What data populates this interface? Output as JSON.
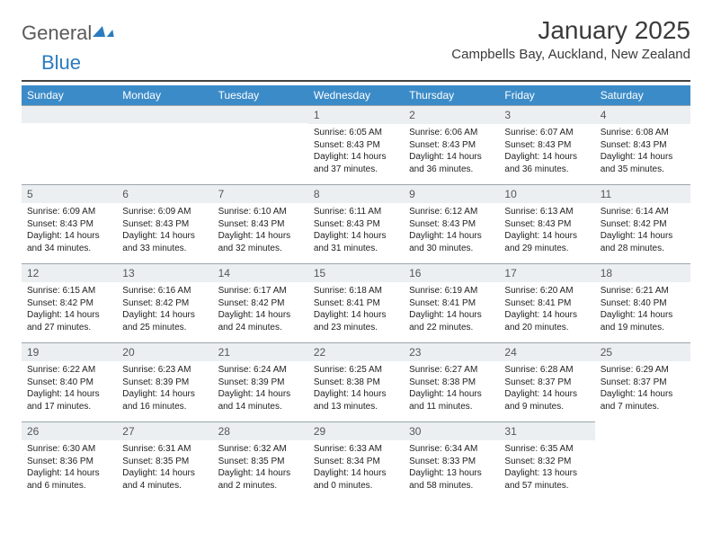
{
  "brand": {
    "part1": "General",
    "part2": "Blue"
  },
  "title": "January 2025",
  "location": "Campbells Bay, Auckland, New Zealand",
  "colors": {
    "header_bg": "#3b8bc8",
    "header_text": "#ffffff",
    "daynum_bg": "#eceff1",
    "daynum_border": "#9aa5ad",
    "body_text": "#222222",
    "logo_gray": "#5a5a5a",
    "logo_blue": "#2a7bbf",
    "rule": "#444444"
  },
  "dayNames": [
    "Sunday",
    "Monday",
    "Tuesday",
    "Wednesday",
    "Thursday",
    "Friday",
    "Saturday"
  ],
  "labels": {
    "sunrise": "Sunrise:",
    "sunset": "Sunset:",
    "daylight": "Daylight:"
  },
  "startOffset": 3,
  "days": [
    {
      "n": 1,
      "rise": "6:05 AM",
      "set": "8:43 PM",
      "day": "14 hours and 37 minutes."
    },
    {
      "n": 2,
      "rise": "6:06 AM",
      "set": "8:43 PM",
      "day": "14 hours and 36 minutes."
    },
    {
      "n": 3,
      "rise": "6:07 AM",
      "set": "8:43 PM",
      "day": "14 hours and 36 minutes."
    },
    {
      "n": 4,
      "rise": "6:08 AM",
      "set": "8:43 PM",
      "day": "14 hours and 35 minutes."
    },
    {
      "n": 5,
      "rise": "6:09 AM",
      "set": "8:43 PM",
      "day": "14 hours and 34 minutes."
    },
    {
      "n": 6,
      "rise": "6:09 AM",
      "set": "8:43 PM",
      "day": "14 hours and 33 minutes."
    },
    {
      "n": 7,
      "rise": "6:10 AM",
      "set": "8:43 PM",
      "day": "14 hours and 32 minutes."
    },
    {
      "n": 8,
      "rise": "6:11 AM",
      "set": "8:43 PM",
      "day": "14 hours and 31 minutes."
    },
    {
      "n": 9,
      "rise": "6:12 AM",
      "set": "8:43 PM",
      "day": "14 hours and 30 minutes."
    },
    {
      "n": 10,
      "rise": "6:13 AM",
      "set": "8:43 PM",
      "day": "14 hours and 29 minutes."
    },
    {
      "n": 11,
      "rise": "6:14 AM",
      "set": "8:42 PM",
      "day": "14 hours and 28 minutes."
    },
    {
      "n": 12,
      "rise": "6:15 AM",
      "set": "8:42 PM",
      "day": "14 hours and 27 minutes."
    },
    {
      "n": 13,
      "rise": "6:16 AM",
      "set": "8:42 PM",
      "day": "14 hours and 25 minutes."
    },
    {
      "n": 14,
      "rise": "6:17 AM",
      "set": "8:42 PM",
      "day": "14 hours and 24 minutes."
    },
    {
      "n": 15,
      "rise": "6:18 AM",
      "set": "8:41 PM",
      "day": "14 hours and 23 minutes."
    },
    {
      "n": 16,
      "rise": "6:19 AM",
      "set": "8:41 PM",
      "day": "14 hours and 22 minutes."
    },
    {
      "n": 17,
      "rise": "6:20 AM",
      "set": "8:41 PM",
      "day": "14 hours and 20 minutes."
    },
    {
      "n": 18,
      "rise": "6:21 AM",
      "set": "8:40 PM",
      "day": "14 hours and 19 minutes."
    },
    {
      "n": 19,
      "rise": "6:22 AM",
      "set": "8:40 PM",
      "day": "14 hours and 17 minutes."
    },
    {
      "n": 20,
      "rise": "6:23 AM",
      "set": "8:39 PM",
      "day": "14 hours and 16 minutes."
    },
    {
      "n": 21,
      "rise": "6:24 AM",
      "set": "8:39 PM",
      "day": "14 hours and 14 minutes."
    },
    {
      "n": 22,
      "rise": "6:25 AM",
      "set": "8:38 PM",
      "day": "14 hours and 13 minutes."
    },
    {
      "n": 23,
      "rise": "6:27 AM",
      "set": "8:38 PM",
      "day": "14 hours and 11 minutes."
    },
    {
      "n": 24,
      "rise": "6:28 AM",
      "set": "8:37 PM",
      "day": "14 hours and 9 minutes."
    },
    {
      "n": 25,
      "rise": "6:29 AM",
      "set": "8:37 PM",
      "day": "14 hours and 7 minutes."
    },
    {
      "n": 26,
      "rise": "6:30 AM",
      "set": "8:36 PM",
      "day": "14 hours and 6 minutes."
    },
    {
      "n": 27,
      "rise": "6:31 AM",
      "set": "8:35 PM",
      "day": "14 hours and 4 minutes."
    },
    {
      "n": 28,
      "rise": "6:32 AM",
      "set": "8:35 PM",
      "day": "14 hours and 2 minutes."
    },
    {
      "n": 29,
      "rise": "6:33 AM",
      "set": "8:34 PM",
      "day": "14 hours and 0 minutes."
    },
    {
      "n": 30,
      "rise": "6:34 AM",
      "set": "8:33 PM",
      "day": "13 hours and 58 minutes."
    },
    {
      "n": 31,
      "rise": "6:35 AM",
      "set": "8:32 PM",
      "day": "13 hours and 57 minutes."
    }
  ]
}
